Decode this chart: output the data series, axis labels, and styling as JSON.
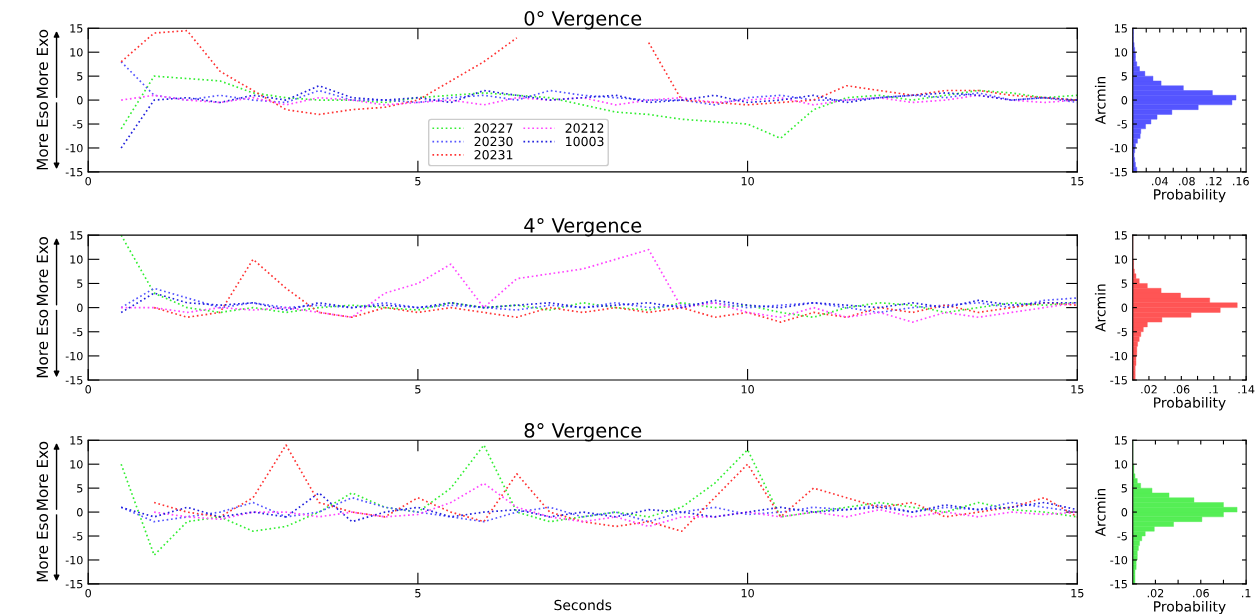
{
  "chart_data": [
    {
      "type": "line",
      "title": "0° Vergence",
      "annotations": [
        "More Exo",
        "More Eso"
      ],
      "line_style": "dotted",
      "legend": "bottom",
      "grid": false,
      "x": [
        0.5,
        1,
        1.5,
        2,
        2.5,
        3,
        3.5,
        4,
        4.5,
        5,
        5.5,
        6,
        6.5,
        7,
        7.5,
        8,
        8.5,
        9,
        9.5,
        10,
        10.5,
        11,
        11.5,
        12,
        12.5,
        13,
        13.5,
        14,
        14.5,
        15
      ],
      "xlim": [
        0,
        15
      ],
      "xticks": [
        0,
        5,
        10,
        15
      ],
      "ylim": [
        -15,
        15
      ],
      "yticks": [
        -15,
        -10,
        -5,
        0,
        5,
        10,
        15
      ],
      "series": [
        {
          "name": "20227",
          "color": "#33ee33",
          "values": [
            -6,
            5,
            4.5,
            4,
            1.5,
            0.5,
            0,
            0,
            -0.5,
            0.5,
            1,
            1.5,
            1,
            0.5,
            -1,
            -2.5,
            -3,
            -4,
            -4.5,
            -5,
            -8,
            -2,
            0.5,
            1,
            0,
            1,
            2,
            1.5,
            0.5,
            1
          ]
        },
        {
          "name": "20230",
          "color": "#5555ff",
          "values": [
            8,
            1,
            0,
            1,
            0,
            -0.5,
            2,
            0,
            0,
            -0.5,
            0.5,
            1,
            0,
            2,
            1,
            0.5,
            0,
            0,
            -1,
            0.5,
            1,
            0,
            0,
            0.5,
            1,
            0.5,
            1.5,
            0,
            0.5,
            -0.5
          ]
        },
        {
          "name": "20231",
          "color": "#ff3333",
          "values": [
            8,
            14,
            14.5,
            6,
            2,
            -2,
            -3,
            -2,
            -1.5,
            0,
            4,
            8,
            13,
            null,
            null,
            null,
            12,
            0,
            -0.5,
            -1,
            -0.5,
            0,
            3,
            2,
            1,
            2,
            2,
            1,
            0.5,
            0
          ]
        },
        {
          "name": "20212",
          "color": "#ff44ff",
          "values": [
            0,
            1,
            0,
            -0.5,
            0.5,
            -1,
            0.5,
            0,
            -1,
            -0.5,
            0,
            -1,
            0.5,
            0,
            0.5,
            -1,
            0,
            0.5,
            -0.5,
            0,
            0.5,
            -1,
            0,
            0.5,
            -0.5,
            0,
            1,
            0,
            -0.5,
            0
          ]
        },
        {
          "name": "10003",
          "color": "#2222dd",
          "values": [
            -10,
            0,
            0.5,
            -0.5,
            1,
            0,
            3,
            0.5,
            0,
            0.5,
            -0.5,
            2,
            1,
            0,
            0.5,
            1,
            -0.5,
            0,
            1,
            -0.5,
            0,
            1,
            -0.5,
            0.5,
            1,
            1.5,
            1,
            0,
            0.5,
            0
          ]
        }
      ]
    },
    {
      "type": "histogram",
      "orientation": "horizontal",
      "ylabel": "Arcmin",
      "xlabel": "Probability",
      "color": "#5555ff",
      "bins": [
        -15,
        -14,
        -13,
        -12,
        -11,
        -10,
        -9,
        -8,
        -7,
        -6,
        -5,
        -4,
        -3,
        -2,
        -1,
        0,
        1,
        2,
        3,
        4,
        5,
        6,
        7,
        8,
        9,
        10,
        11,
        12,
        13,
        14,
        15
      ],
      "values": [
        0.006,
        0.004,
        0.003,
        0.002,
        0.003,
        0.004,
        0.007,
        0.011,
        0.012,
        0.019,
        0.027,
        0.036,
        0.058,
        0.097,
        0.147,
        0.153,
        0.118,
        0.075,
        0.042,
        0.03,
        0.018,
        0.01,
        0.006,
        0.004,
        0.004,
        0.003,
        0.002,
        0.001,
        0.001,
        0.001
      ],
      "xlim": [
        0,
        0.168
      ],
      "xticks": [
        {
          "value": 0.02,
          "label": null
        },
        {
          "value": 0.04,
          "label": ".04"
        },
        {
          "value": 0.06,
          "label": null
        },
        {
          "value": 0.08,
          "label": ".08"
        },
        {
          "value": 0.1,
          "label": null
        },
        {
          "value": 0.12,
          "label": ".12"
        },
        {
          "value": 0.14,
          "label": null
        },
        {
          "value": 0.16,
          "label": ".16"
        }
      ],
      "ylim": [
        -15,
        15
      ],
      "yticks": [
        -15,
        -10,
        -5,
        0,
        5,
        10,
        15
      ]
    },
    {
      "type": "line",
      "title": "4° Vergence",
      "annotations": [
        "More Exo",
        "More Eso"
      ],
      "line_style": "dotted",
      "grid": false,
      "x": [
        0.5,
        1,
        1.5,
        2,
        2.5,
        3,
        3.5,
        4,
        4.5,
        5,
        5.5,
        6,
        6.5,
        7,
        7.5,
        8,
        8.5,
        9,
        9.5,
        10,
        10.5,
        11,
        11.5,
        12,
        12.5,
        13,
        13.5,
        14,
        14.5,
        15
      ],
      "xlim": [
        0,
        15
      ],
      "xticks": [
        0,
        5,
        10,
        15
      ],
      "ylim": [
        -15,
        15
      ],
      "yticks": [
        -15,
        -10,
        -5,
        0,
        5,
        10,
        15
      ],
      "series": [
        {
          "color": "#33ee33",
          "values": [
            15,
            3,
            0,
            -1,
            0,
            -1,
            0,
            0.5,
            0,
            -0.5,
            1,
            0,
            0.5,
            -0.5,
            1,
            0,
            -0.5,
            1,
            0,
            0.5,
            -1,
            -2,
            0,
            1,
            0.5,
            -1,
            0,
            1,
            0.5,
            1
          ]
        },
        {
          "color": "#5555ff",
          "values": [
            0,
            4,
            2,
            0,
            1,
            0,
            0.5,
            0,
            1,
            0,
            0.5,
            0,
            -0.5,
            0.5,
            0,
            1,
            0,
            0.5,
            1,
            0,
            0.5,
            1,
            0,
            -1,
            0,
            0.5,
            1,
            0,
            1.5,
            2
          ]
        },
        {
          "color": "#ff3333",
          "values": [
            null,
            0,
            -2,
            -1,
            10,
            4,
            -1,
            -2,
            0,
            -1,
            0,
            -1,
            -2,
            0,
            -1,
            0,
            -1,
            0,
            -2,
            -1,
            -3,
            -1,
            -2,
            0,
            -1,
            0.5,
            -1,
            0,
            1,
            0.5
          ]
        },
        {
          "color": "#ff44ff",
          "values": [
            0,
            0,
            -1,
            0,
            -0.5,
            0,
            -1,
            -2,
            3,
            5,
            9,
            0,
            6,
            7,
            8,
            10,
            12,
            0,
            1,
            -1,
            -2,
            0,
            -2,
            -1,
            -3,
            -1,
            -2,
            -1,
            0,
            1
          ]
        },
        {
          "color": "#2222dd",
          "values": [
            -1,
            3,
            1,
            0.5,
            1,
            -0.5,
            1,
            0,
            0.5,
            0,
            1,
            0,
            0.5,
            1,
            0,
            0.5,
            1,
            0,
            1.5,
            0.5,
            0,
            1,
            0.5,
            0,
            1,
            0,
            1.5,
            0.5,
            1,
            1
          ]
        }
      ]
    },
    {
      "type": "histogram",
      "orientation": "horizontal",
      "ylabel": "Arcmin",
      "xlabel": "Probability",
      "color": "#ff5555",
      "bins": [
        -15,
        -14,
        -13,
        -12,
        -11,
        -10,
        -9,
        -8,
        -7,
        -6,
        -5,
        -4,
        -3,
        -2,
        -1,
        0,
        1,
        2,
        3,
        4,
        5,
        6,
        7,
        8,
        9,
        10,
        11,
        12,
        13,
        14,
        15
      ],
      "values": [
        0.003,
        0.003,
        0.003,
        0.004,
        0.004,
        0.005,
        0.005,
        0.006,
        0.008,
        0.01,
        0.013,
        0.018,
        0.036,
        0.072,
        0.108,
        0.129,
        0.095,
        0.059,
        0.035,
        0.018,
        0.008,
        0.004,
        0.002,
        0.001,
        0.001,
        0,
        0,
        0,
        0,
        0
      ],
      "xlim": [
        0,
        0.14
      ],
      "xticks": [
        {
          "value": 0.02,
          "label": ".02"
        },
        {
          "value": 0.04,
          "label": null
        },
        {
          "value": 0.06,
          "label": ".06"
        },
        {
          "value": 0.08,
          "label": null
        },
        {
          "value": 0.1,
          "label": ".1"
        },
        {
          "value": 0.12,
          "label": null
        },
        {
          "value": 0.14,
          "label": ".14"
        }
      ],
      "ylim": [
        -15,
        15
      ],
      "yticks": [
        -15,
        -10,
        -5,
        0,
        5,
        10,
        15
      ]
    },
    {
      "type": "line",
      "title": "8° Vergence",
      "xlabel": "Seconds",
      "annotations": [
        "More Exo",
        "More Eso"
      ],
      "line_style": "dotted",
      "grid": false,
      "x": [
        0.5,
        1,
        1.5,
        2,
        2.5,
        3,
        3.5,
        4,
        4.5,
        5,
        5.5,
        6,
        6.5,
        7,
        7.5,
        8,
        8.5,
        9,
        9.5,
        10,
        10.5,
        11,
        11.5,
        12,
        12.5,
        13,
        13.5,
        14,
        14.5,
        15
      ],
      "xlim": [
        0,
        15
      ],
      "xticks": [
        0,
        5,
        10,
        15
      ],
      "ylim": [
        -15,
        15
      ],
      "yticks": [
        -15,
        -10,
        -5,
        0,
        5,
        10,
        15
      ],
      "series": [
        {
          "color": "#33ee33",
          "values": [
            10,
            -9,
            -2,
            -1,
            -4,
            -3,
            0,
            4,
            1,
            0,
            5,
            14,
            0,
            -2,
            -1,
            0,
            -1,
            1,
            6,
            13,
            -1,
            0,
            1,
            2,
            1,
            0,
            2,
            0.5,
            0,
            -1
          ]
        },
        {
          "color": "#5555ff",
          "values": [
            1,
            -2,
            -1,
            0,
            2,
            -1,
            0,
            3,
            1,
            0,
            -1,
            -2,
            0,
            1,
            -1,
            0,
            -2,
            0,
            1,
            -0.5,
            0,
            1,
            0.5,
            1.5,
            0,
            1,
            0.5,
            2,
            1,
            0
          ]
        },
        {
          "color": "#ff3333",
          "values": [
            null,
            2,
            0,
            -1,
            3,
            14,
            2,
            0,
            -1,
            3,
            0,
            -2,
            8,
            0,
            -2,
            -3,
            -2,
            -4,
            3,
            10,
            -1,
            5,
            3,
            1,
            2,
            -1,
            0,
            1,
            3,
            -1
          ]
        },
        {
          "color": "#ff44ff",
          "values": [
            null,
            0,
            -1,
            -1.5,
            0,
            0,
            -1,
            0,
            -1,
            -0.5,
            2,
            6,
            1,
            -1,
            -2,
            -1,
            -3,
            -1,
            -1,
            0,
            -1,
            0,
            -1,
            0.5,
            -1,
            0,
            -1,
            0,
            -0.5,
            0
          ]
        },
        {
          "color": "#2222dd",
          "values": [
            1,
            -1,
            1,
            -1,
            0,
            -1,
            4,
            -2,
            0,
            1,
            -1,
            0,
            0.5,
            -1,
            0,
            -1,
            0.5,
            0,
            -1,
            0,
            1,
            0,
            0.5,
            1,
            0,
            1.5,
            0.5,
            1,
            2,
            0.5
          ]
        }
      ]
    },
    {
      "type": "histogram",
      "orientation": "horizontal",
      "ylabel": "Arcmin",
      "xlabel": "Probability",
      "color": "#55ee55",
      "bins": [
        -15,
        -14,
        -13,
        -12,
        -11,
        -10,
        -9,
        -8,
        -7,
        -6,
        -5,
        -4,
        -3,
        -2,
        -1,
        0,
        1,
        2,
        3,
        4,
        5,
        6,
        7,
        8,
        9,
        10,
        11,
        12,
        13,
        14,
        15
      ],
      "values": [
        0.002,
        0.002,
        0.002,
        0.003,
        0.003,
        0.004,
        0.004,
        0.005,
        0.006,
        0.008,
        0.011,
        0.019,
        0.036,
        0.061,
        0.08,
        0.092,
        0.08,
        0.054,
        0.032,
        0.017,
        0.007,
        0.004,
        0.002,
        0.001,
        0.001,
        0,
        0,
        0,
        0,
        0
      ],
      "xlim": [
        0,
        0.1
      ],
      "xticks": [
        {
          "value": 0.02,
          "label": ".02"
        },
        {
          "value": 0.04,
          "label": null
        },
        {
          "value": 0.06,
          "label": ".06"
        },
        {
          "value": 0.08,
          "label": null
        },
        {
          "value": 0.1,
          "label": ".1"
        }
      ],
      "ylim": [
        -15,
        15
      ],
      "yticks": [
        -15,
        -10,
        -5,
        0,
        5,
        10,
        15
      ]
    }
  ]
}
